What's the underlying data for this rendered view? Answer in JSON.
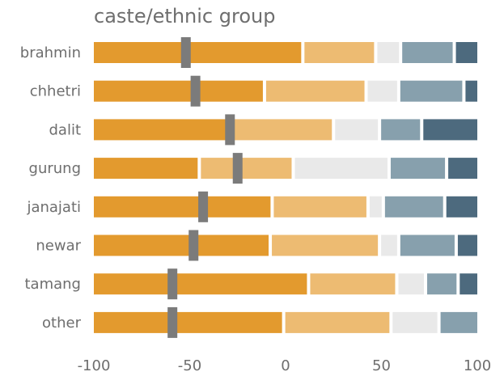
{
  "chart_data": {
    "type": "bar",
    "subtype": "diverging-stacked-with-marker",
    "title": "caste/ethnic group",
    "categories": [
      "brahmin",
      "chhetri",
      "dalit",
      "gurung",
      "janajati",
      "newar",
      "tamang",
      "other"
    ],
    "segment_colors": [
      "#E39A2E",
      "#EDBB72",
      "#E9E9E9",
      "#87A0AD",
      "#4D6A7E"
    ],
    "marker_color": "#7B7B7B",
    "rows": [
      {
        "segments": [
          [
            -100,
            9
          ],
          [
            9,
            47
          ],
          [
            47,
            60
          ],
          [
            60,
            88
          ],
          [
            88,
            100
          ]
        ],
        "marker": -52
      },
      {
        "segments": [
          [
            -100,
            -11
          ],
          [
            -11,
            42
          ],
          [
            42,
            59
          ],
          [
            59,
            93
          ],
          [
            93,
            100
          ]
        ],
        "marker": -47
      },
      {
        "segments": [
          [
            -100,
            -30
          ],
          [
            -30,
            25
          ],
          [
            25,
            49
          ],
          [
            49,
            71
          ],
          [
            71,
            100
          ]
        ],
        "marker": -29
      },
      {
        "segments": [
          [
            -100,
            -45
          ],
          [
            -45,
            4
          ],
          [
            4,
            54
          ],
          [
            54,
            84
          ],
          [
            84,
            100
          ]
        ],
        "marker": -25
      },
      {
        "segments": [
          [
            -100,
            -7
          ],
          [
            -7,
            43
          ],
          [
            43,
            51
          ],
          [
            51,
            83
          ],
          [
            83,
            100
          ]
        ],
        "marker": -43
      },
      {
        "segments": [
          [
            -100,
            -8
          ],
          [
            -8,
            49
          ],
          [
            49,
            59
          ],
          [
            59,
            89
          ],
          [
            89,
            100
          ]
        ],
        "marker": -48
      },
      {
        "segments": [
          [
            -100,
            12
          ],
          [
            12,
            58
          ],
          [
            58,
            73
          ],
          [
            73,
            90
          ],
          [
            90,
            100
          ]
        ],
        "marker": -59
      },
      {
        "segments": [
          [
            -100,
            -1
          ],
          [
            -1,
            55
          ],
          [
            55,
            80
          ],
          [
            80,
            100
          ]
        ],
        "marker": -59
      }
    ],
    "x_ticks": [
      -100,
      -50,
      0,
      50,
      100
    ],
    "xlim": [
      -100,
      100
    ],
    "grid": false,
    "legend": "none"
  }
}
